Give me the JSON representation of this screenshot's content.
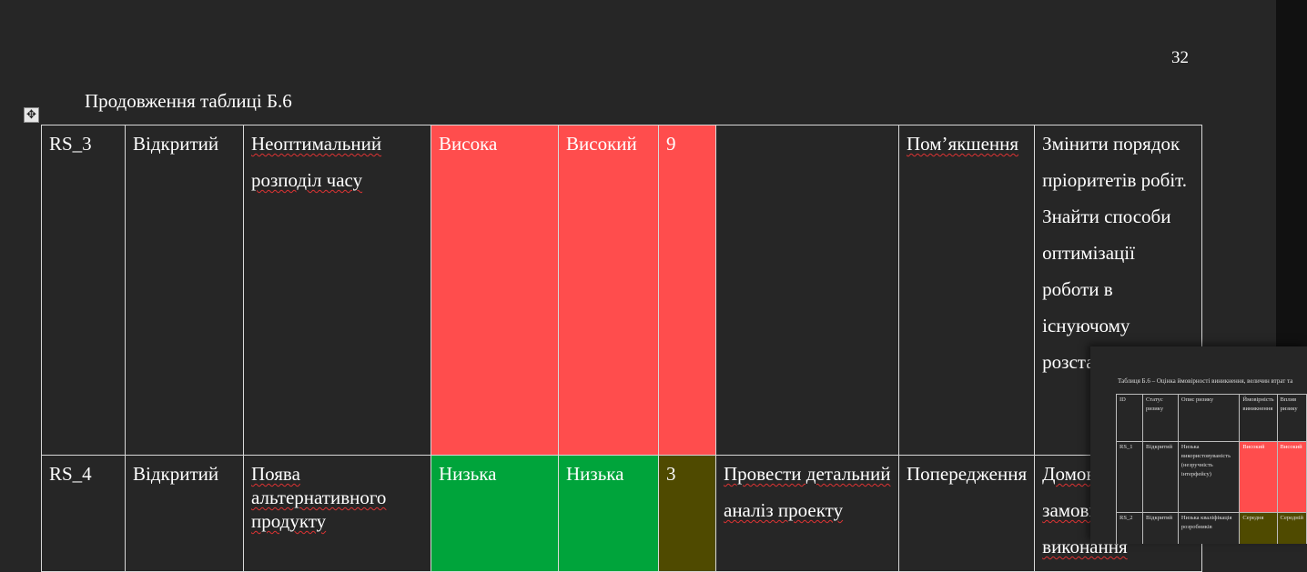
{
  "page": {
    "number": "32",
    "continuation_label": "Продовження таблиці Б.6"
  },
  "colors": {
    "background": "#262626",
    "high": "#ff4d4d",
    "low": "#00a43b",
    "score_olive": "#4f4a00"
  },
  "icons": {
    "move_handle": "move-icon"
  },
  "table": {
    "rows": [
      {
        "id": "RS_3",
        "status": "Відкритий",
        "description": "Неоптимальний розподіл часу",
        "probability": "Висока",
        "impact": "Високий",
        "score": "9",
        "action": "",
        "strategy": "Пом’якшення",
        "response": "Змінити порядок пріоритетів робіт. Знайти способи оптимізації роботи в існуючому розстановці"
      },
      {
        "id": "RS_4",
        "status": "Відкритий",
        "description": "Поява альтернативного продукту",
        "probability": "Низька",
        "impact": "Низька",
        "score": "3",
        "action": "Провести детальний аналіз проекту",
        "strategy": "Попередження",
        "response": "Домовитись з замовником про виконання"
      }
    ]
  },
  "thumbnail": {
    "caption": "Таблиця Б.6 – Оцінка ймовірності виникнення, величин втрат та",
    "headers": [
      "ID",
      "Статус ризику",
      "Опис ризику",
      "Ймовірність виникнення",
      "Вплив ризику"
    ],
    "rows": [
      [
        "RS_1",
        "Відкритий",
        "Низька використовуваність (незручність інтерфейсу)",
        "Високий",
        "Високий"
      ],
      [
        "RS_2",
        "Відкритий",
        "Низька кваліфікація розробників",
        "Середня",
        "Середній"
      ]
    ]
  }
}
